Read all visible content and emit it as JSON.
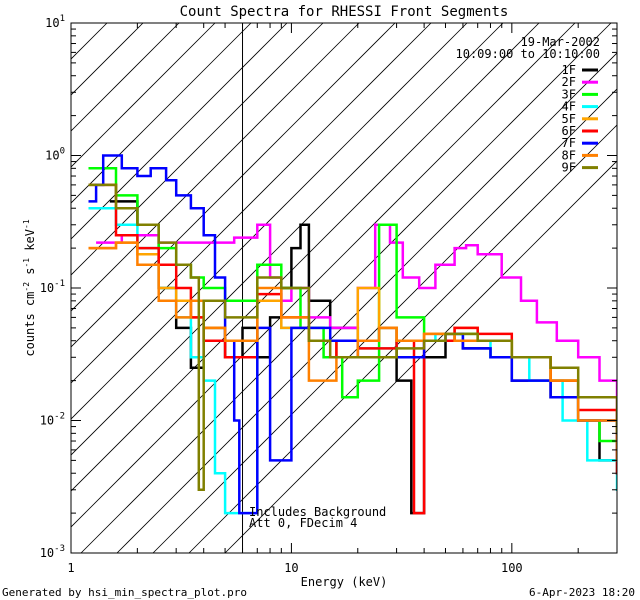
{
  "chart_data": {
    "type": "line",
    "title": "Count Spectra for RHESSI Front Segments",
    "xlabel": "Energy (keV)",
    "ylabel": "counts cm",
    "ylabel_exp1": "-2",
    "ylabel_mid": " s",
    "ylabel_exp2": "-1",
    "ylabel_end": " keV",
    "ylabel_exp3": "-1",
    "x_scale": "log",
    "y_scale": "log",
    "xlim": [
      1,
      300
    ],
    "ylim": [
      0.001,
      10
    ],
    "x_ticks": [
      {
        "value": 1,
        "label": "1"
      },
      {
        "value": 10,
        "label": "10"
      },
      {
        "value": 100,
        "label": "100"
      }
    ],
    "y_ticks": [
      {
        "value": 0.001,
        "base": "10",
        "exp": "-3"
      },
      {
        "value": 0.01,
        "base": "10",
        "exp": "-2"
      },
      {
        "value": 0.1,
        "base": "10",
        "exp": "-1"
      },
      {
        "value": 1,
        "base": "10",
        "exp": "0"
      },
      {
        "value": 10,
        "base": "10",
        "exp": "1"
      }
    ],
    "hatched_region": [
      1,
      6
    ],
    "date": "19-Mar-2002",
    "time_range": "10:09:00 to 10:10:00",
    "annotation_lines": [
      "Includes Background",
      "Att 0, FDecim 4"
    ],
    "legend_position": "top-right",
    "series": [
      {
        "name": "1F",
        "color": "#000000",
        "points": [
          [
            1.5,
            0.45
          ],
          [
            2,
            0.3
          ],
          [
            2.5,
            0.1
          ],
          [
            3,
            0.05
          ],
          [
            3.5,
            0.025
          ],
          [
            4,
            0.05
          ],
          [
            5,
            0.03
          ],
          [
            6,
            0.05
          ],
          [
            7,
            0.03
          ],
          [
            8,
            0.06
          ],
          [
            9,
            0.1
          ],
          [
            10,
            0.2
          ],
          [
            11,
            0.3
          ],
          [
            12,
            0.08
          ],
          [
            15,
            0.05
          ],
          [
            20,
            0.04
          ],
          [
            25,
            0.05
          ],
          [
            30,
            0.02
          ],
          [
            35,
            0.002
          ],
          [
            40,
            0.03
          ],
          [
            50,
            0.04
          ],
          [
            60,
            0.035
          ],
          [
            80,
            0.03
          ],
          [
            100,
            0.02
          ],
          [
            150,
            0.015
          ],
          [
            200,
            0.01
          ],
          [
            250,
            0.005
          ],
          [
            300,
            0.004
          ]
        ]
      },
      {
        "name": "2F",
        "color": "#ff00ff",
        "points": [
          [
            1.3,
            0.22
          ],
          [
            1.7,
            0.25
          ],
          [
            2.5,
            0.22
          ],
          [
            3.5,
            0.22
          ],
          [
            4.5,
            0.22
          ],
          [
            5.5,
            0.24
          ],
          [
            7,
            0.3
          ],
          [
            8,
            0.12
          ],
          [
            9,
            0.08
          ],
          [
            10,
            0.1
          ],
          [
            12,
            0.06
          ],
          [
            15,
            0.05
          ],
          [
            20,
            0.1
          ],
          [
            24,
            0.3
          ],
          [
            28,
            0.22
          ],
          [
            32,
            0.12
          ],
          [
            38,
            0.1
          ],
          [
            45,
            0.15
          ],
          [
            55,
            0.2
          ],
          [
            62,
            0.21
          ],
          [
            70,
            0.18
          ],
          [
            90,
            0.12
          ],
          [
            110,
            0.08
          ],
          [
            130,
            0.055
          ],
          [
            160,
            0.04
          ],
          [
            200,
            0.03
          ],
          [
            250,
            0.02
          ],
          [
            300,
            0.01
          ]
        ]
      },
      {
        "name": "3F",
        "color": "#00ff00",
        "points": [
          [
            1.2,
            0.8
          ],
          [
            1.6,
            0.5
          ],
          [
            2,
            0.3
          ],
          [
            2.5,
            0.2
          ],
          [
            3,
            0.15
          ],
          [
            3.5,
            0.12
          ],
          [
            4,
            0.1
          ],
          [
            5,
            0.08
          ],
          [
            7,
            0.15
          ],
          [
            9,
            0.1
          ],
          [
            11,
            0.05
          ],
          [
            14,
            0.03
          ],
          [
            17,
            0.015
          ],
          [
            20,
            0.02
          ],
          [
            25,
            0.3
          ],
          [
            30,
            0.06
          ],
          [
            40,
            0.04
          ],
          [
            55,
            0.045
          ],
          [
            70,
            0.04
          ],
          [
            100,
            0.03
          ],
          [
            150,
            0.02
          ],
          [
            200,
            0.01
          ],
          [
            250,
            0.007
          ],
          [
            300,
            0.005
          ]
        ]
      },
      {
        "name": "4F",
        "color": "#00ffff",
        "points": [
          [
            1.2,
            0.4
          ],
          [
            1.6,
            0.3
          ],
          [
            2,
            0.2
          ],
          [
            2.5,
            0.1
          ],
          [
            3,
            0.06
          ],
          [
            3.5,
            0.03
          ],
          [
            4,
            0.02
          ],
          [
            4.5,
            0.004
          ],
          [
            5,
            0.002
          ],
          [
            7,
            0.08
          ],
          [
            9,
            0.05
          ],
          [
            12,
            0.04
          ],
          [
            16,
            0.03
          ],
          [
            20,
            0.035
          ],
          [
            30,
            0.04
          ],
          [
            45,
            0.045
          ],
          [
            60,
            0.04
          ],
          [
            80,
            0.03
          ],
          [
            120,
            0.02
          ],
          [
            170,
            0.01
          ],
          [
            220,
            0.005
          ],
          [
            300,
            0.003
          ]
        ]
      },
      {
        "name": "5F",
        "color": "#ffa500",
        "points": [
          [
            1.2,
            0.2
          ],
          [
            1.6,
            0.22
          ],
          [
            2,
            0.18
          ],
          [
            2.5,
            0.1
          ],
          [
            3,
            0.08
          ],
          [
            3.5,
            0.06
          ],
          [
            4,
            0.05
          ],
          [
            5,
            0.04
          ],
          [
            7,
            0.08
          ],
          [
            9,
            0.05
          ],
          [
            12,
            0.04
          ],
          [
            16,
            0.03
          ],
          [
            20,
            0.1
          ],
          [
            25,
            0.05
          ],
          [
            30,
            0.04
          ],
          [
            40,
            0.045
          ],
          [
            55,
            0.05
          ],
          [
            70,
            0.04
          ],
          [
            100,
            0.03
          ],
          [
            150,
            0.02
          ],
          [
            200,
            0.01
          ],
          [
            300,
            0.005
          ]
        ]
      },
      {
        "name": "6F",
        "color": "#ff0000",
        "points": [
          [
            1.2,
            0.6
          ],
          [
            1.6,
            0.25
          ],
          [
            2,
            0.2
          ],
          [
            2.5,
            0.15
          ],
          [
            3,
            0.1
          ],
          [
            3.5,
            0.06
          ],
          [
            4,
            0.04
          ],
          [
            5,
            0.03
          ],
          [
            7,
            0.09
          ],
          [
            9,
            0.06
          ],
          [
            12,
            0.04
          ],
          [
            16,
            0.03
          ],
          [
            20,
            0.035
          ],
          [
            30,
            0.04
          ],
          [
            36,
            0.002
          ],
          [
            40,
            0.04
          ],
          [
            55,
            0.05
          ],
          [
            70,
            0.045
          ],
          [
            100,
            0.03
          ],
          [
            150,
            0.02
          ],
          [
            200,
            0.012
          ],
          [
            300,
            0.004
          ]
        ]
      },
      {
        "name": "7F",
        "color": "#0000ff",
        "points": [
          [
            1.2,
            0.45
          ],
          [
            1.3,
            0.6
          ],
          [
            1.4,
            1.0
          ],
          [
            1.7,
            0.8
          ],
          [
            2,
            0.7
          ],
          [
            2.3,
            0.8
          ],
          [
            2.7,
            0.65
          ],
          [
            3,
            0.5
          ],
          [
            3.5,
            0.4
          ],
          [
            4,
            0.25
          ],
          [
            4.5,
            0.12
          ],
          [
            5,
            0.04
          ],
          [
            5.5,
            0.01
          ],
          [
            5.8,
            0.002
          ],
          [
            7,
            0.05
          ],
          [
            8,
            0.005
          ],
          [
            10,
            0.05
          ],
          [
            15,
            0.04
          ],
          [
            20,
            0.03
          ],
          [
            30,
            0.03
          ],
          [
            40,
            0.04
          ],
          [
            50,
            0.045
          ],
          [
            60,
            0.035
          ],
          [
            80,
            0.03
          ],
          [
            100,
            0.02
          ],
          [
            150,
            0.015
          ],
          [
            200,
            0.01
          ],
          [
            300,
            0.005
          ]
        ]
      },
      {
        "name": "8F",
        "color": "#ff8000",
        "points": [
          [
            1.2,
            0.2
          ],
          [
            1.6,
            0.22
          ],
          [
            2,
            0.15
          ],
          [
            2.5,
            0.08
          ],
          [
            3,
            0.06
          ],
          [
            3.5,
            0.08
          ],
          [
            4,
            0.05
          ],
          [
            5,
            0.04
          ],
          [
            7,
            0.1
          ],
          [
            9,
            0.06
          ],
          [
            12,
            0.02
          ],
          [
            16,
            0.03
          ],
          [
            20,
            0.04
          ],
          [
            25,
            0.05
          ],
          [
            30,
            0.04
          ],
          [
            40,
            0.045
          ],
          [
            55,
            0.04
          ],
          [
            70,
            0.04
          ],
          [
            100,
            0.03
          ],
          [
            150,
            0.02
          ],
          [
            200,
            0.01
          ],
          [
            300,
            0.005
          ]
        ]
      },
      {
        "name": "9F",
        "color": "#808000",
        "points": [
          [
            1.2,
            0.6
          ],
          [
            1.6,
            0.4
          ],
          [
            2,
            0.3
          ],
          [
            2.5,
            0.22
          ],
          [
            3,
            0.15
          ],
          [
            3.5,
            0.12
          ],
          [
            3.8,
            0.003
          ],
          [
            4,
            0.08
          ],
          [
            5,
            0.06
          ],
          [
            7,
            0.12
          ],
          [
            9,
            0.1
          ],
          [
            12,
            0.04
          ],
          [
            15,
            0.03
          ],
          [
            20,
            0.03
          ],
          [
            30,
            0.035
          ],
          [
            40,
            0.04
          ],
          [
            50,
            0.045
          ],
          [
            70,
            0.04
          ],
          [
            100,
            0.03
          ],
          [
            150,
            0.025
          ],
          [
            200,
            0.015
          ],
          [
            300,
            0.008
          ]
        ]
      }
    ]
  },
  "footer": {
    "left": "Generated by hsi_min_spectra_plot.pro",
    "right": "6-Apr-2023 18:20"
  }
}
